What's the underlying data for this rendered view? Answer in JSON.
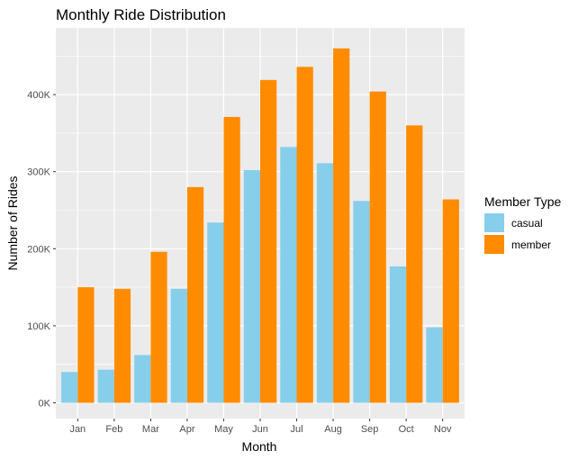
{
  "chart_data": {
    "type": "bar",
    "title": "Monthly Ride Distribution",
    "xlabel": "Month",
    "ylabel": "Number of Rides",
    "categories": [
      "Jan",
      "Feb",
      "Mar",
      "Apr",
      "May",
      "Jun",
      "Jul",
      "Aug",
      "Sep",
      "Oct",
      "Nov"
    ],
    "series": [
      {
        "name": "casual",
        "color": "#87CEEB",
        "values": [
          40000,
          43000,
          62000,
          148000,
          234000,
          302000,
          332000,
          311000,
          262000,
          177000,
          98000
        ]
      },
      {
        "name": "member",
        "color": "#FF8C00",
        "values": [
          150000,
          148000,
          196000,
          280000,
          371000,
          419000,
          436000,
          460000,
          404000,
          360000,
          264000
        ]
      }
    ],
    "ylim": [
      0,
      465000
    ],
    "yticks": [
      {
        "value": 0,
        "label": "0K"
      },
      {
        "value": 100000,
        "label": "100K"
      },
      {
        "value": 200000,
        "label": "200K"
      },
      {
        "value": 300000,
        "label": "300K"
      },
      {
        "value": 400000,
        "label": "400K"
      }
    ],
    "legend": {
      "title": "Member Type",
      "position": "right"
    },
    "grid": true,
    "panel_background": "#EBEBEB",
    "grid_color": "#FFFFFF"
  }
}
